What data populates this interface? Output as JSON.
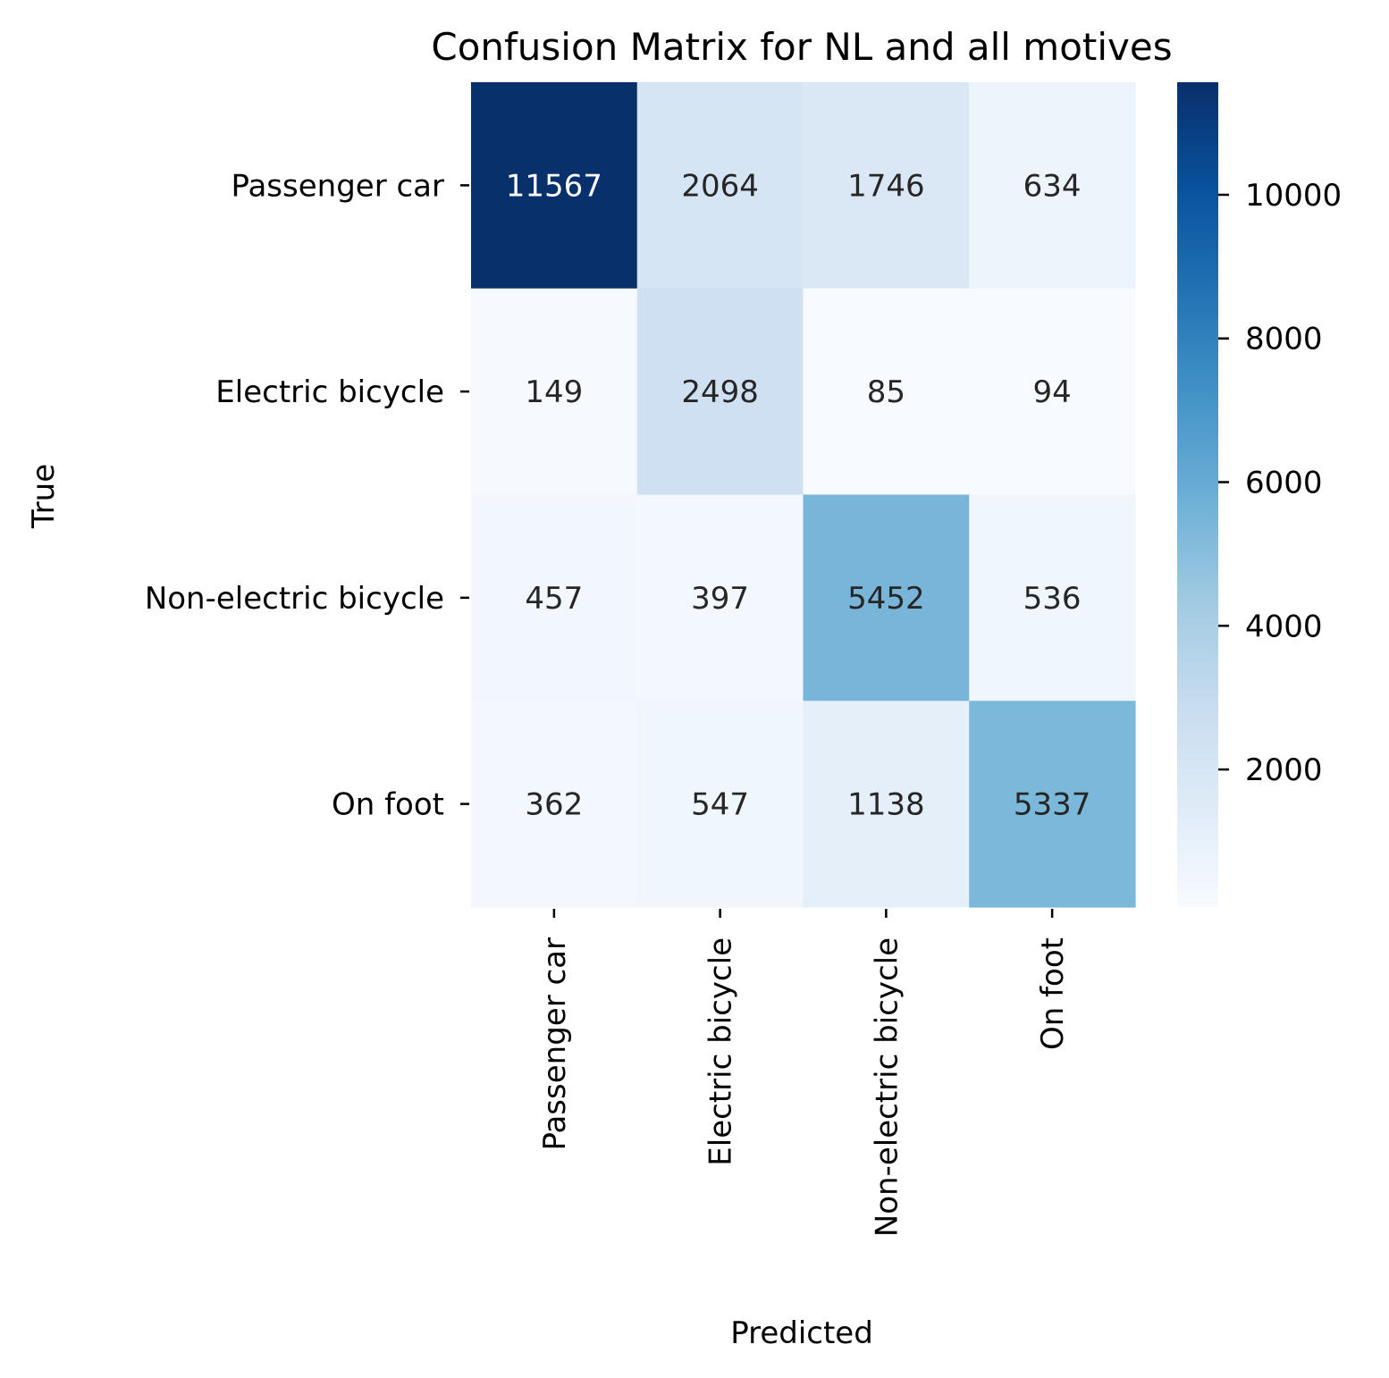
{
  "chart_data": {
    "type": "heatmap",
    "title": "Confusion Matrix for NL and all motives",
    "xlabel": "Predicted",
    "ylabel": "True",
    "x_categories": [
      "Passenger car",
      "Electric bicycle",
      "Non-electric bicycle",
      "On foot"
    ],
    "y_categories": [
      "Passenger car",
      "Electric bicycle",
      "Non-electric bicycle",
      "On foot"
    ],
    "values": [
      [
        11567,
        2064,
        1746,
        634
      ],
      [
        149,
        2498,
        85,
        94
      ],
      [
        457,
        397,
        5452,
        536
      ],
      [
        362,
        547,
        1138,
        5337
      ]
    ],
    "colormap": "Blues",
    "color_range": [
      85,
      11567
    ],
    "colorbar_ticks": [
      2000,
      4000,
      6000,
      8000,
      10000
    ],
    "legend_position": "right",
    "grid": false
  }
}
